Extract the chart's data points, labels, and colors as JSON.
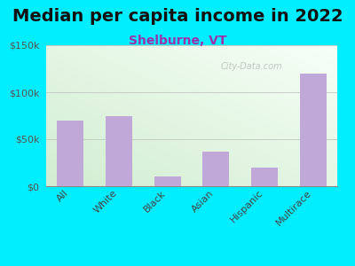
{
  "title": "Median per capita income in 2022",
  "subtitle": "Shelburne, VT",
  "categories": [
    "All",
    "White",
    "Black",
    "Asian",
    "Hispanic",
    "Multirace"
  ],
  "values": [
    70000,
    75000,
    10000,
    37000,
    20000,
    120000
  ],
  "bar_color": "#c0a8d8",
  "title_fontsize": 14,
  "subtitle_fontsize": 10,
  "subtitle_color": "#9933aa",
  "title_color": "#111111",
  "bg_outer": "#00eeff",
  "ylim": [
    0,
    150000
  ],
  "yticks": [
    0,
    50000,
    100000,
    150000
  ],
  "ytick_labels": [
    "$0",
    "$50k",
    "$100k",
    "$150k"
  ],
  "xlabel_rotation": 45,
  "watermark": "City-Data.com",
  "watermark_color": "#aaaaaa",
  "bg_grad_left": "#d8edd8",
  "bg_grad_right": "#f8fff8"
}
